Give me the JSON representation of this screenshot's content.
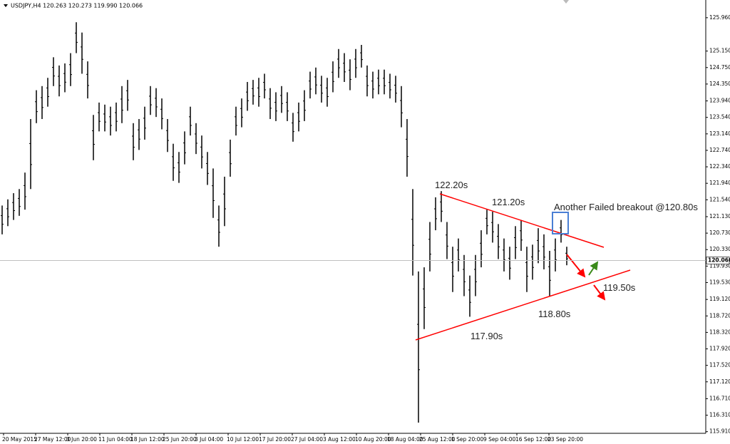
{
  "chart_data": {
    "type": "ohlc",
    "title": "USDJPY,H4 120.263 120.273 119.990 120.066",
    "color": "#000000",
    "categories": [
      "20 May 2015",
      "27 May 12:00",
      "3 Jun 20:00",
      "11 Jun 04:00",
      "18 Jun 12:00",
      "25 Jun 20:00",
      "3 Jul 04:00",
      "10 Jul 12:00",
      "17 Jul 20:00",
      "27 Jul 04:00",
      "3 Aug 12:00",
      "10 Aug 20:00",
      "18 Aug 04:00",
      "25 Aug 12:00",
      "1 Sep 20:00",
      "9 Sep 04:00",
      "16 Sep 12:00",
      "23 Sep 20:00"
    ],
    "high": [
      121.4,
      121.55,
      121.7,
      121.8,
      122.2,
      123.5,
      124.2,
      124.3,
      124.5,
      125.0,
      124.8,
      124.85,
      125.1,
      125.85,
      125.6,
      124.9,
      123.6,
      123.9,
      123.85,
      123.8,
      123.9,
      124.3,
      124.45,
      123.4,
      123.5,
      123.8,
      124.3,
      124.25,
      124.0,
      123.5,
      122.9,
      122.7,
      123.2,
      123.8,
      123.4,
      123.1,
      122.7,
      122.3,
      121.4,
      122.1,
      123.0,
      123.8,
      124.0,
      124.4,
      124.45,
      124.5,
      124.6,
      124.25,
      124.15,
      124.3,
      124.15,
      123.65,
      123.9,
      124.2,
      124.65,
      124.75,
      124.55,
      124.5,
      124.9,
      125.2,
      125.1,
      124.95,
      125.2,
      125.3,
      124.8,
      124.65,
      124.7,
      124.7,
      124.6,
      124.55,
      124.3,
      123.5,
      121.8,
      119.8,
      119.9,
      121.0,
      121.6,
      121.75,
      121.0,
      120.4,
      120.6,
      120.2,
      119.7,
      120.2,
      120.8,
      121.3,
      121.25,
      120.95,
      120.6,
      120.4,
      120.9,
      121.05,
      120.4,
      120.45,
      120.85,
      120.7,
      120.3,
      120.6,
      121.05,
      120.4
    ],
    "low": [
      120.7,
      120.9,
      121.05,
      121.15,
      121.3,
      121.8,
      123.4,
      123.5,
      123.8,
      124.3,
      124.05,
      124.15,
      124.3,
      125.1,
      124.6,
      124.0,
      122.5,
      123.2,
      123.2,
      123.1,
      123.2,
      123.4,
      123.7,
      122.5,
      122.75,
      123.0,
      123.6,
      123.55,
      123.25,
      122.7,
      122.0,
      121.95,
      122.4,
      123.1,
      122.65,
      122.3,
      121.9,
      121.1,
      120.4,
      120.9,
      122.1,
      123.1,
      123.3,
      123.7,
      123.85,
      123.8,
      124.0,
      123.5,
      123.45,
      123.65,
      123.45,
      122.95,
      123.2,
      123.45,
      124.0,
      124.1,
      123.9,
      123.8,
      124.15,
      124.5,
      124.4,
      124.2,
      124.5,
      124.75,
      124.05,
      124.0,
      124.1,
      124.1,
      124.0,
      123.9,
      123.3,
      122.1,
      119.7,
      116.13,
      118.4,
      119.8,
      120.8,
      121.0,
      120.1,
      119.3,
      119.8,
      119.2,
      118.7,
      119.2,
      119.9,
      120.7,
      120.5,
      120.1,
      119.8,
      119.6,
      120.1,
      120.3,
      119.3,
      119.6,
      120.0,
      119.85,
      119.2,
      119.8,
      120.5,
      119.95
    ],
    "ylim": [
      115.87,
      126.39
    ],
    "yticks": [
      {
        "value": 125.96,
        "label": "125.960"
      },
      {
        "value": 125.15,
        "label": "125.150"
      },
      {
        "value": 124.75,
        "label": "124.750"
      },
      {
        "value": 124.35,
        "label": "124.350"
      },
      {
        "value": 123.94,
        "label": "123.940"
      },
      {
        "value": 123.54,
        "label": "123.540"
      },
      {
        "value": 123.14,
        "label": "123.140"
      },
      {
        "value": 122.74,
        "label": "122.740"
      },
      {
        "value": 122.34,
        "label": "122.340"
      },
      {
        "value": 121.94,
        "label": "121.940"
      },
      {
        "value": 121.54,
        "label": "121.540"
      },
      {
        "value": 121.13,
        "label": "121.130"
      },
      {
        "value": 120.73,
        "label": "120.730"
      },
      {
        "value": 120.33,
        "label": "120.330"
      },
      {
        "value": 119.93,
        "label": "119.930"
      },
      {
        "value": 119.53,
        "label": "119.530"
      },
      {
        "value": 119.12,
        "label": "119.120"
      },
      {
        "value": 118.72,
        "label": "118.720"
      },
      {
        "value": 118.32,
        "label": "118.320"
      },
      {
        "value": 117.92,
        "label": "117.920"
      },
      {
        "value": 117.52,
        "label": "117.520"
      },
      {
        "value": 117.12,
        "label": "117.120"
      },
      {
        "value": 116.71,
        "label": "116.710"
      },
      {
        "value": 116.31,
        "label": "116.310"
      },
      {
        "value": 115.91,
        "label": "115.910"
      }
    ],
    "current_price": 120.066,
    "annotations": [
      "122.20s",
      "121.20s",
      "Another Failed breakout @120.80s",
      "119.50s",
      "118.80s",
      "117.90s"
    ]
  }
}
